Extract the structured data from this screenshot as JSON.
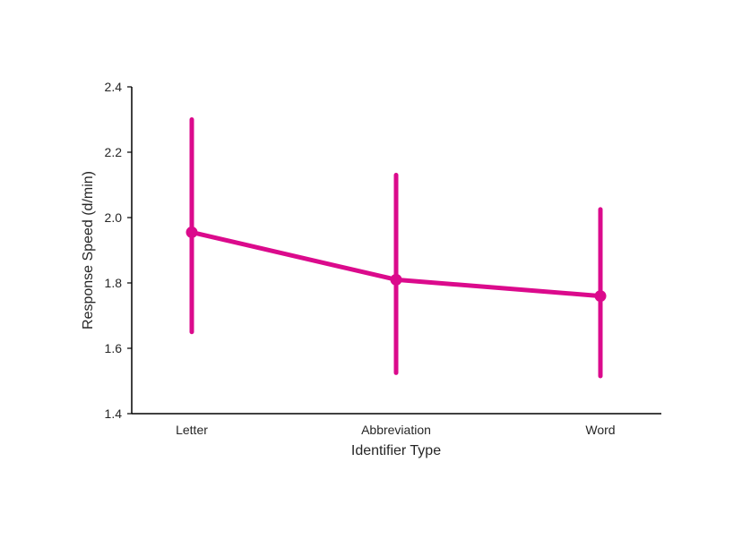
{
  "chart_data": {
    "type": "line",
    "title": "",
    "xlabel": "Identifier Type",
    "ylabel": "Response Speed (d/min)",
    "categories": [
      "Letter",
      "Abbreviation",
      "Word"
    ],
    "series": [
      {
        "values": [
          1.955,
          1.81,
          1.76
        ],
        "error_low": [
          1.65,
          1.525,
          1.515
        ],
        "error_high": [
          2.3,
          2.13,
          2.025
        ]
      }
    ],
    "ylim": [
      1.4,
      2.4
    ],
    "yticks": [
      "1.4",
      "1.6",
      "1.8",
      "2.0",
      "2.2",
      "2.4"
    ],
    "grid": false,
    "legend": "none",
    "color": "#db0a8c"
  }
}
